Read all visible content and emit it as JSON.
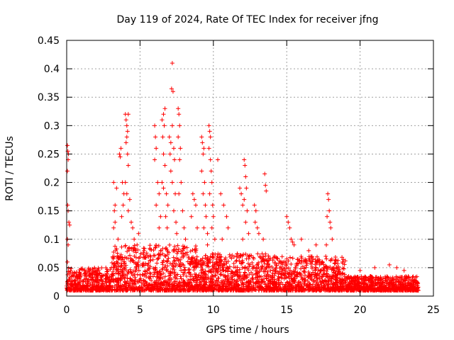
{
  "chart_data": {
    "type": "scatter",
    "title": "Day 119 of 2024, Rate Of TEC Index for receiver jfng",
    "xlabel": "GPS time / hours",
    "ylabel": "ROTI / TECUs",
    "xlim": [
      0,
      25
    ],
    "ylim": [
      0,
      0.45
    ],
    "x_ticks": [
      0,
      5,
      10,
      15,
      20,
      25
    ],
    "x_tick_labels": [
      "0",
      "5",
      "10",
      "15",
      "20",
      "25"
    ],
    "y_ticks": [
      0,
      0.05,
      0.1,
      0.15,
      0.2,
      0.25,
      0.3,
      0.35,
      0.4,
      0.45
    ],
    "y_tick_labels": [
      "0",
      "0.05",
      "0.1",
      "0.15",
      "0.2",
      "0.25",
      "0.3",
      "0.35",
      "0.4",
      "0.45"
    ],
    "grid": true,
    "marker": "+",
    "color": "#ff0000",
    "series": [
      {
        "name": "ROTI",
        "points": [
          [
            0.05,
            0.265
          ],
          [
            0.08,
            0.255
          ],
          [
            0.1,
            0.24
          ],
          [
            0.05,
            0.22
          ],
          [
            0.12,
            0.25
          ],
          [
            0.07,
            0.16
          ],
          [
            0.1,
            0.15
          ],
          [
            0.15,
            0.13
          ],
          [
            0.2,
            0.125
          ],
          [
            0.05,
            0.1
          ],
          [
            0.1,
            0.09
          ],
          [
            0.05,
            0.06
          ],
          [
            3.2,
            0.2
          ],
          [
            3.3,
            0.16
          ],
          [
            3.25,
            0.15
          ],
          [
            3.4,
            0.19
          ],
          [
            3.3,
            0.13
          ],
          [
            3.2,
            0.12
          ],
          [
            3.5,
            0.1
          ],
          [
            3.6,
            0.25
          ],
          [
            3.7,
            0.26
          ],
          [
            3.65,
            0.245
          ],
          [
            3.8,
            0.2
          ],
          [
            3.9,
            0.18
          ],
          [
            3.85,
            0.16
          ],
          [
            3.75,
            0.14
          ],
          [
            4.0,
            0.32
          ],
          [
            4.05,
            0.31
          ],
          [
            4.1,
            0.3
          ],
          [
            4.15,
            0.29
          ],
          [
            4.2,
            0.32
          ],
          [
            4.1,
            0.28
          ],
          [
            4.05,
            0.27
          ],
          [
            4.15,
            0.25
          ],
          [
            4.2,
            0.23
          ],
          [
            4.0,
            0.2
          ],
          [
            4.1,
            0.18
          ],
          [
            4.3,
            0.17
          ],
          [
            4.2,
            0.15
          ],
          [
            4.4,
            0.13
          ],
          [
            4.5,
            0.12
          ],
          [
            4.6,
            0.1
          ],
          [
            4.8,
            0.09
          ],
          [
            4.9,
            0.11
          ],
          [
            6.0,
            0.3
          ],
          [
            6.05,
            0.28
          ],
          [
            6.1,
            0.26
          ],
          [
            6.0,
            0.24
          ],
          [
            6.2,
            0.2
          ],
          [
            6.3,
            0.18
          ],
          [
            6.1,
            0.16
          ],
          [
            6.4,
            0.14
          ],
          [
            6.5,
            0.31
          ],
          [
            6.6,
            0.32
          ],
          [
            6.7,
            0.33
          ],
          [
            6.65,
            0.3
          ],
          [
            6.55,
            0.28
          ],
          [
            6.6,
            0.25
          ],
          [
            6.7,
            0.23
          ],
          [
            6.5,
            0.2
          ],
          [
            6.6,
            0.19
          ],
          [
            6.8,
            0.18
          ],
          [
            6.9,
            0.16
          ],
          [
            6.75,
            0.14
          ],
          [
            6.85,
            0.12
          ],
          [
            7.0,
            0.28
          ],
          [
            7.1,
            0.27
          ],
          [
            7.05,
            0.25
          ],
          [
            7.2,
            0.41
          ],
          [
            7.15,
            0.365
          ],
          [
            7.25,
            0.36
          ],
          [
            7.2,
            0.3
          ],
          [
            7.3,
            0.26
          ],
          [
            7.35,
            0.24
          ],
          [
            7.1,
            0.22
          ],
          [
            7.2,
            0.2
          ],
          [
            7.4,
            0.18
          ],
          [
            7.3,
            0.15
          ],
          [
            7.45,
            0.13
          ],
          [
            7.6,
            0.33
          ],
          [
            7.65,
            0.32
          ],
          [
            7.7,
            0.3
          ],
          [
            7.6,
            0.28
          ],
          [
            7.75,
            0.26
          ],
          [
            7.7,
            0.24
          ],
          [
            7.8,
            0.2
          ],
          [
            7.65,
            0.18
          ],
          [
            7.9,
            0.15
          ],
          [
            8.0,
            0.12
          ],
          [
            8.1,
            0.1
          ],
          [
            7.5,
            0.11
          ],
          [
            6.3,
            0.12
          ],
          [
            8.6,
            0.18
          ],
          [
            8.7,
            0.17
          ],
          [
            8.8,
            0.16
          ],
          [
            8.5,
            0.14
          ],
          [
            8.9,
            0.12
          ],
          [
            9.2,
            0.28
          ],
          [
            9.25,
            0.27
          ],
          [
            9.3,
            0.25
          ],
          [
            9.35,
            0.26
          ],
          [
            9.2,
            0.22
          ],
          [
            9.4,
            0.2
          ],
          [
            9.3,
            0.18
          ],
          [
            9.45,
            0.16
          ],
          [
            9.5,
            0.14
          ],
          [
            9.35,
            0.12
          ],
          [
            9.6,
            0.11
          ],
          [
            9.7,
            0.3
          ],
          [
            9.75,
            0.29
          ],
          [
            9.8,
            0.28
          ],
          [
            9.7,
            0.26
          ],
          [
            9.8,
            0.24
          ],
          [
            9.85,
            0.22
          ],
          [
            9.9,
            0.2
          ],
          [
            9.75,
            0.18
          ],
          [
            9.95,
            0.16
          ],
          [
            10.0,
            0.14
          ],
          [
            9.9,
            0.12
          ],
          [
            10.1,
            0.1
          ],
          [
            9.6,
            0.09
          ],
          [
            10.3,
            0.24
          ],
          [
            10.5,
            0.18
          ],
          [
            10.7,
            0.16
          ],
          [
            10.9,
            0.14
          ],
          [
            11.0,
            0.12
          ],
          [
            10.6,
            0.1
          ],
          [
            11.8,
            0.19
          ],
          [
            11.9,
            0.18
          ],
          [
            12.0,
            0.16
          ],
          [
            12.1,
            0.24
          ],
          [
            12.15,
            0.23
          ],
          [
            12.2,
            0.21
          ],
          [
            12.25,
            0.19
          ],
          [
            12.1,
            0.17
          ],
          [
            12.3,
            0.15
          ],
          [
            12.2,
            0.13
          ],
          [
            12.4,
            0.11
          ],
          [
            12.0,
            0.1
          ],
          [
            12.8,
            0.16
          ],
          [
            12.9,
            0.15
          ],
          [
            12.85,
            0.13
          ],
          [
            13.0,
            0.12
          ],
          [
            13.1,
            0.11
          ],
          [
            13.5,
            0.215
          ],
          [
            13.55,
            0.195
          ],
          [
            13.6,
            0.185
          ],
          [
            13.4,
            0.1
          ],
          [
            15.0,
            0.14
          ],
          [
            15.1,
            0.13
          ],
          [
            15.2,
            0.12
          ],
          [
            15.3,
            0.1
          ],
          [
            15.4,
            0.095
          ],
          [
            15.5,
            0.09
          ],
          [
            16.0,
            0.1
          ],
          [
            16.5,
            0.08
          ],
          [
            17.0,
            0.09
          ],
          [
            17.8,
            0.18
          ],
          [
            17.85,
            0.17
          ],
          [
            17.9,
            0.15
          ],
          [
            17.75,
            0.14
          ],
          [
            17.95,
            0.13
          ],
          [
            18.0,
            0.12
          ],
          [
            18.1,
            0.1
          ],
          [
            17.7,
            0.09
          ],
          [
            18.8,
            0.06
          ],
          [
            20.0,
            0.045
          ],
          [
            21.0,
            0.05
          ],
          [
            22.0,
            0.055
          ],
          [
            22.5,
            0.05
          ],
          [
            23.0,
            0.045
          ]
        ],
        "baseline": {
          "segments": [
            {
              "x": [
                0,
                3
              ],
              "low": 0.01,
              "high": 0.05
            },
            {
              "x": [
                3,
                9
              ],
              "low": 0.01,
              "high": 0.09
            },
            {
              "x": [
                9,
                14
              ],
              "low": 0.01,
              "high": 0.075
            },
            {
              "x": [
                14,
                19
              ],
              "low": 0.01,
              "high": 0.07
            },
            {
              "x": [
                19,
                24
              ],
              "low": 0.01,
              "high": 0.035
            }
          ]
        }
      }
    ]
  }
}
